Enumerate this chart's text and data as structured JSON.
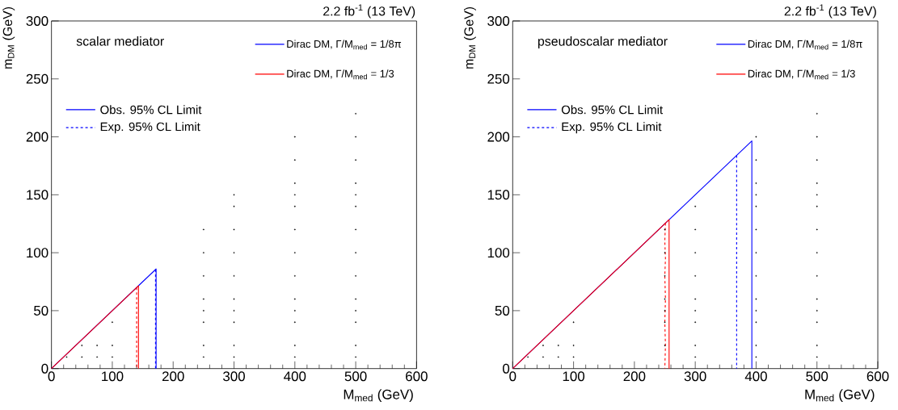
{
  "chart_data": [
    {
      "type": "line",
      "title": "scalar mediator",
      "xlabel": "M$_{med}$ (GeV)",
      "ylabel": "m$_{DM}$ (GeV)",
      "annotations": [
        "2.2 fb$^{-1}$ (13 TeV)",
        "Obs. 95% CL Limit",
        "Exp. 95% CL Limit"
      ],
      "xlim": [
        0,
        600
      ],
      "ylim": [
        0,
        300
      ],
      "xticks": [
        0,
        100,
        200,
        300,
        400,
        500,
        600
      ],
      "yticks": [
        0,
        50,
        100,
        150,
        200,
        250,
        300
      ],
      "legend": "top right",
      "series": [
        {
          "type": "scatter",
          "color": "#000000",
          "x": [
            25,
            50,
            50,
            75,
            75,
            100,
            100,
            100,
            250,
            250,
            250,
            250,
            250,
            250,
            250,
            250,
            300,
            300,
            300,
            300,
            300,
            300,
            300,
            300,
            300,
            300,
            400,
            400,
            400,
            400,
            400,
            400,
            400,
            400,
            400,
            400,
            400,
            400,
            400,
            500,
            500,
            500,
            500,
            500,
            500,
            500,
            500,
            500,
            500,
            500,
            500,
            500,
            500
          ],
          "values": [
            10,
            10,
            20,
            10,
            20,
            10,
            20,
            40,
            10,
            20,
            40,
            50,
            60,
            80,
            100,
            120,
            10,
            20,
            40,
            50,
            60,
            80,
            100,
            120,
            140,
            150,
            10,
            20,
            40,
            50,
            60,
            80,
            100,
            120,
            140,
            150,
            160,
            180,
            200,
            10,
            20,
            40,
            50,
            60,
            80,
            100,
            120,
            140,
            150,
            160,
            180,
            200,
            220
          ]
        },
        {
          "type": "line",
          "name": "Dirac DM, Γ/M$_{med}$ = 1/8π",
          "color": "#0000ff",
          "line_style": "solid",
          "x": [
            0,
            172,
            172
          ],
          "values": [
            0,
            86,
            0
          ]
        },
        {
          "type": "line",
          "color": "#0000ff",
          "line_style": "dashed",
          "x": [
            171,
            171
          ],
          "values": [
            85.5,
            0
          ]
        },
        {
          "type": "line",
          "name": "Dirac DM, Γ/M$_{med}$ = 1/3",
          "color": "#ff0000",
          "line_style": "solid",
          "x": [
            0,
            143,
            143
          ],
          "values": [
            0,
            71.5,
            0
          ]
        },
        {
          "type": "line",
          "color": "#ff0000",
          "line_style": "dashed",
          "x": [
            140,
            140
          ],
          "values": [
            70,
            0
          ]
        }
      ]
    },
    {
      "type": "line",
      "title": "pseudoscalar mediator",
      "xlabel": "M$_{med}$ (GeV)",
      "ylabel": "m$_{DM}$ (GeV)",
      "annotations": [
        "2.2 fb$^{-1}$ (13 TeV)",
        "Obs. 95% CL Limit",
        "Exp. 95% CL Limit"
      ],
      "xlim": [
        0,
        600
      ],
      "ylim": [
        0,
        300
      ],
      "xticks": [
        0,
        100,
        200,
        300,
        400,
        500,
        600
      ],
      "yticks": [
        0,
        50,
        100,
        150,
        200,
        250,
        300
      ],
      "legend": "top right",
      "series": [
        {
          "type": "scatter",
          "color": "#000000",
          "x": [
            25,
            50,
            50,
            75,
            75,
            100,
            100,
            100,
            250,
            250,
            250,
            250,
            250,
            250,
            250,
            300,
            300,
            300,
            300,
            300,
            300,
            300,
            300,
            300,
            400,
            400,
            400,
            400,
            400,
            400,
            400,
            400,
            400,
            400,
            400,
            400,
            400,
            500,
            500,
            500,
            500,
            500,
            500,
            500,
            500,
            500,
            500,
            500,
            500,
            500,
            500
          ],
          "values": [
            10,
            10,
            20,
            10,
            20,
            10,
            20,
            40,
            20,
            40,
            50,
            60,
            80,
            100,
            120,
            10,
            20,
            40,
            50,
            60,
            80,
            100,
            120,
            140,
            10,
            20,
            40,
            50,
            60,
            80,
            100,
            120,
            140,
            150,
            160,
            180,
            200,
            10,
            20,
            40,
            50,
            60,
            80,
            100,
            120,
            140,
            150,
            160,
            180,
            200,
            220
          ]
        },
        {
          "type": "line",
          "name": "Dirac DM, Γ/M$_{med}$ = 1/8π",
          "color": "#0000ff",
          "line_style": "solid",
          "x": [
            0,
            393,
            393
          ],
          "values": [
            0,
            196.5,
            0
          ]
        },
        {
          "type": "line",
          "color": "#0000ff",
          "line_style": "dashed",
          "x": [
            368,
            368
          ],
          "values": [
            184,
            0
          ]
        },
        {
          "type": "line",
          "name": "Dirac DM, Γ/M$_{med}$ = 1/3",
          "color": "#ff0000",
          "line_style": "solid",
          "x": [
            0,
            257,
            257
          ],
          "values": [
            0,
            128.5,
            0
          ]
        },
        {
          "type": "line",
          "color": "#ff0000",
          "line_style": "dashed",
          "x": [
            251,
            250,
            251,
            250,
            251,
            250,
            251,
            250
          ],
          "values": [
            125.5,
            110,
            95,
            80,
            60,
            40,
            20,
            0
          ]
        }
      ]
    }
  ]
}
